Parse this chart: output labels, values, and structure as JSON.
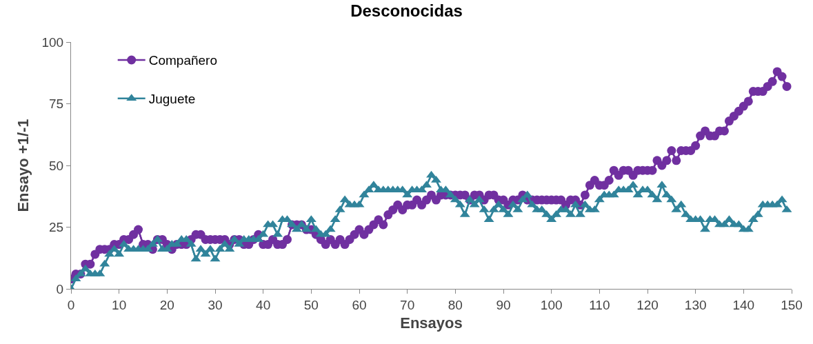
{
  "chart_data": {
    "type": "line",
    "title": "Desconocidas",
    "xlabel": "Ensayos",
    "ylabel": "Ensayo +1/-1",
    "x": [
      0,
      1,
      2,
      3,
      4,
      5,
      6,
      7,
      8,
      9,
      10,
      11,
      12,
      13,
      14,
      15,
      16,
      17,
      18,
      19,
      20,
      21,
      22,
      23,
      24,
      25,
      26,
      27,
      28,
      29,
      30,
      31,
      32,
      33,
      34,
      35,
      36,
      37,
      38,
      39,
      40,
      41,
      42,
      43,
      44,
      45,
      46,
      47,
      48,
      49,
      50,
      51,
      52,
      53,
      54,
      55,
      56,
      57,
      58,
      59,
      60,
      61,
      62,
      63,
      64,
      65,
      66,
      67,
      68,
      69,
      70,
      71,
      72,
      73,
      74,
      75,
      76,
      77,
      78,
      79,
      80,
      81,
      82,
      83,
      84,
      85,
      86,
      87,
      88,
      89,
      90,
      91,
      92,
      93,
      94,
      95,
      96,
      97,
      98,
      99,
      100,
      101,
      102,
      103,
      104,
      105,
      106,
      107,
      108,
      109,
      110,
      111,
      112,
      113,
      114,
      115,
      116,
      117,
      118,
      119,
      120,
      121,
      122,
      123,
      124,
      125,
      126,
      127,
      128,
      129,
      130,
      131,
      132,
      133,
      134,
      135,
      136,
      137,
      138,
      139,
      140,
      141,
      142,
      143,
      144,
      145,
      146,
      147,
      148,
      149
    ],
    "series": [
      {
        "name": "Compañero",
        "color": "#7030a0",
        "marker": "circle",
        "values": [
          4,
          6,
          6,
          10,
          10,
          14,
          16,
          16,
          16,
          18,
          18,
          20,
          20,
          22,
          24,
          18,
          18,
          16,
          20,
          20,
          18,
          16,
          18,
          18,
          18,
          20,
          22,
          22,
          20,
          20,
          20,
          20,
          20,
          18,
          20,
          20,
          18,
          18,
          20,
          22,
          18,
          18,
          20,
          18,
          18,
          20,
          26,
          26,
          26,
          24,
          24,
          22,
          20,
          18,
          20,
          18,
          20,
          18,
          20,
          22,
          24,
          22,
          24,
          26,
          28,
          26,
          30,
          32,
          34,
          32,
          34,
          34,
          36,
          34,
          36,
          38,
          36,
          38,
          38,
          38,
          38,
          38,
          38,
          36,
          38,
          38,
          36,
          38,
          38,
          36,
          36,
          34,
          36,
          36,
          38,
          36,
          36,
          36,
          36,
          36,
          36,
          36,
          36,
          34,
          36,
          36,
          34,
          38,
          42,
          44,
          42,
          42,
          44,
          48,
          46,
          48,
          48,
          46,
          48,
          48,
          48,
          48,
          52,
          50,
          52,
          56,
          52,
          56,
          56,
          56,
          58,
          62,
          64,
          62,
          62,
          64,
          64,
          68,
          70,
          72,
          74,
          76,
          80,
          80,
          80,
          82,
          84,
          88,
          86,
          82
        ]
      },
      {
        "name": "Juguete",
        "color": "#31849b",
        "marker": "triangle",
        "values": [
          0,
          4,
          6,
          8,
          6,
          6,
          6,
          10,
          14,
          16,
          14,
          18,
          16,
          16,
          16,
          16,
          16,
          18,
          20,
          16,
          16,
          18,
          18,
          20,
          20,
          18,
          12,
          16,
          14,
          16,
          12,
          16,
          18,
          16,
          20,
          18,
          20,
          20,
          20,
          20,
          22,
          26,
          26,
          22,
          28,
          28,
          26,
          24,
          26,
          24,
          28,
          24,
          22,
          22,
          24,
          28,
          32,
          36,
          34,
          34,
          34,
          38,
          40,
          42,
          40,
          40,
          40,
          40,
          40,
          40,
          38,
          40,
          40,
          40,
          42,
          46,
          44,
          40,
          40,
          38,
          36,
          34,
          30,
          36,
          34,
          36,
          32,
          28,
          32,
          34,
          32,
          30,
          34,
          32,
          36,
          38,
          34,
          32,
          32,
          30,
          28,
          30,
          32,
          32,
          30,
          34,
          30,
          34,
          32,
          32,
          36,
          38,
          38,
          38,
          40,
          40,
          40,
          42,
          38,
          40,
          40,
          38,
          36,
          42,
          38,
          36,
          32,
          34,
          30,
          28,
          28,
          28,
          24,
          28,
          28,
          26,
          26,
          28,
          26,
          26,
          24,
          24,
          28,
          30,
          34,
          34,
          34,
          34,
          36,
          32
        ]
      }
    ],
    "xlim": [
      0,
      150
    ],
    "xticks": [
      0,
      10,
      20,
      30,
      40,
      50,
      60,
      70,
      80,
      90,
      100,
      110,
      120,
      130,
      140,
      150
    ],
    "ylim": [
      0,
      100
    ],
    "yticks": [
      0,
      25,
      50,
      75,
      100
    ],
    "grid": false,
    "legend": "top left",
    "line_style": "solid"
  }
}
